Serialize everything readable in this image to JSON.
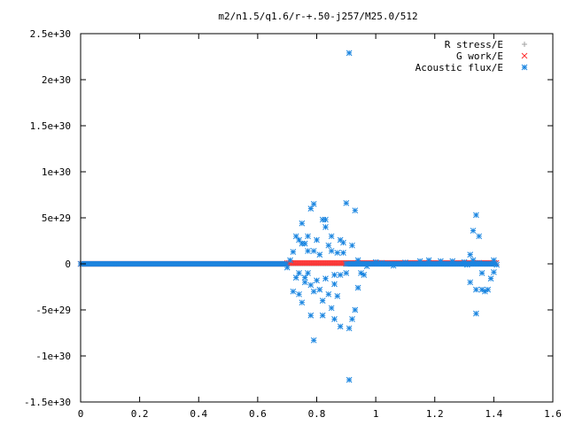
{
  "chart_data": {
    "type": "scatter",
    "title": "m2/n1.5/q1.6/r-+.50-j257/M25.0/512",
    "xlabel": "",
    "ylabel": "",
    "xlim": [
      0,
      1.6
    ],
    "ylim": [
      -1.5e+30,
      2.5e+30
    ],
    "x_ticks": [
      {
        "value": 0,
        "label": "0"
      },
      {
        "value": 0.2,
        "label": "0.2"
      },
      {
        "value": 0.4,
        "label": "0.4"
      },
      {
        "value": 0.6,
        "label": "0.6"
      },
      {
        "value": 0.8,
        "label": "0.8"
      },
      {
        "value": 1.0,
        "label": "1"
      },
      {
        "value": 1.2,
        "label": "1.2"
      },
      {
        "value": 1.4,
        "label": "1.4"
      },
      {
        "value": 1.6,
        "label": "1.6"
      }
    ],
    "y_ticks": [
      {
        "value": 2.5e+30,
        "label": "2.5e+30"
      },
      {
        "value": 2e+30,
        "label": "2e+30"
      },
      {
        "value": 1.5e+30,
        "label": "1.5e+30"
      },
      {
        "value": 1e+30,
        "label": "1e+30"
      },
      {
        "value": 5e+29,
        "label": "5e+29"
      },
      {
        "value": 0,
        "label": "0"
      },
      {
        "value": -5e+29,
        "label": "-5e+29"
      },
      {
        "value": -1e+30,
        "label": "-1e+30"
      },
      {
        "value": -1.5e+30,
        "label": "-1.5e+30"
      }
    ],
    "grid": false,
    "legend_position": "top-right",
    "series": [
      {
        "name": "R stress/E",
        "marker": "plus",
        "color": "#a0a0a0",
        "segments": [
          {
            "x_start": 0.0,
            "x_end": 1.41,
            "y": 0
          }
        ],
        "points": []
      },
      {
        "name": "G work/E",
        "marker": "cross",
        "color": "#ff3030",
        "segments": [
          {
            "x_start": 0.0,
            "x_end": 0.7,
            "y": 0
          },
          {
            "x_start": 0.7,
            "x_end": 1.41,
            "y": 1e+28
          }
        ],
        "points": []
      },
      {
        "name": "Acoustic flux/E",
        "marker": "star",
        "color": "#1a85e0",
        "segments": [
          {
            "x_start": 0.0,
            "x_end": 0.7,
            "y": 0
          },
          {
            "x_start": 0.9,
            "x_end": 1.41,
            "y": 0
          }
        ],
        "points": [
          [
            0.7,
            -4e+28
          ],
          [
            0.71,
            4e+28
          ],
          [
            0.72,
            -3e+29
          ],
          [
            0.72,
            1.3e+29
          ],
          [
            0.73,
            3e+29
          ],
          [
            0.73,
            -1.5e+29
          ],
          [
            0.74,
            2.6e+29
          ],
          [
            0.74,
            -1e+29
          ],
          [
            0.74,
            -3.3e+29
          ],
          [
            0.75,
            4.4e+29
          ],
          [
            0.75,
            2.2e+29
          ],
          [
            0.75,
            -4.2e+29
          ],
          [
            0.76,
            2.2e+29
          ],
          [
            0.76,
            -1.5e+29
          ],
          [
            0.76,
            -2e+29
          ],
          [
            0.77,
            3e+29
          ],
          [
            0.77,
            1.4e+29
          ],
          [
            0.77,
            -1e+29
          ],
          [
            0.78,
            -2.3e+29
          ],
          [
            0.78,
            6e+29
          ],
          [
            0.78,
            -5.6e+29
          ],
          [
            0.79,
            6.5e+29
          ],
          [
            0.79,
            -3e+29
          ],
          [
            0.79,
            1.4e+29
          ],
          [
            0.79,
            -8.3e+29
          ],
          [
            0.8,
            2.6e+29
          ],
          [
            0.8,
            -1.8e+29
          ],
          [
            0.81,
            -2.8e+29
          ],
          [
            0.81,
            1e+29
          ],
          [
            0.82,
            -5.6e+29
          ],
          [
            0.82,
            4.8e+29
          ],
          [
            0.82,
            -4e+29
          ],
          [
            0.83,
            4e+29
          ],
          [
            0.83,
            4.8e+29
          ],
          [
            0.83,
            -1.6e+29
          ],
          [
            0.84,
            2e+29
          ],
          [
            0.84,
            -3.3e+29
          ],
          [
            0.85,
            3e+29
          ],
          [
            0.85,
            1.4e+29
          ],
          [
            0.85,
            -4.8e+29
          ],
          [
            0.86,
            -1.2e+29
          ],
          [
            0.86,
            -6e+29
          ],
          [
            0.86,
            -2.2e+29
          ],
          [
            0.87,
            1.2e+29
          ],
          [
            0.87,
            -3.5e+29
          ],
          [
            0.88,
            -6.8e+29
          ],
          [
            0.88,
            2.6e+29
          ],
          [
            0.88,
            -1.2e+29
          ],
          [
            0.89,
            2.3e+29
          ],
          [
            0.89,
            1.2e+29
          ],
          [
            0.9,
            6.6e+29
          ],
          [
            0.9,
            -1e+29
          ],
          [
            0.91,
            2.29e+30
          ],
          [
            0.91,
            -1.26e+30
          ],
          [
            0.91,
            -7e+29
          ],
          [
            0.92,
            2e+29
          ],
          [
            0.92,
            -6e+29
          ],
          [
            0.93,
            5.8e+29
          ],
          [
            0.93,
            -5e+29
          ],
          [
            0.94,
            -2.6e+29
          ],
          [
            0.94,
            4e+28
          ],
          [
            0.95,
            -1e+29
          ],
          [
            0.96,
            -1.2e+29
          ],
          [
            0.97,
            -2.5e+28
          ],
          [
            1.0,
            2e+28
          ],
          [
            1.02,
            1e+28
          ],
          [
            1.06,
            -2e+28
          ],
          [
            1.1,
            1.5e+28
          ],
          [
            1.15,
            3e+28
          ],
          [
            1.18,
            4e+28
          ],
          [
            1.22,
            3e+28
          ],
          [
            1.26,
            3e+28
          ],
          [
            1.3,
            2e+28
          ],
          [
            1.31,
            -1e+28
          ],
          [
            1.32,
            1e+29
          ],
          [
            1.32,
            -2e+29
          ],
          [
            1.33,
            3.6e+29
          ],
          [
            1.33,
            4e+28
          ],
          [
            1.34,
            -2.8e+29
          ],
          [
            1.34,
            5.3e+29
          ],
          [
            1.34,
            -5.4e+29
          ],
          [
            1.35,
            3e+29
          ],
          [
            1.35,
            1e+28
          ],
          [
            1.36,
            -2.8e+29
          ],
          [
            1.36,
            -1e+29
          ],
          [
            1.37,
            -3e+29
          ],
          [
            1.38,
            -2.8e+29
          ],
          [
            1.39,
            -1.6e+29
          ],
          [
            1.4,
            -9e+28
          ],
          [
            1.4,
            4e+28
          ],
          [
            1.41,
            -1e+28
          ]
        ]
      }
    ]
  }
}
